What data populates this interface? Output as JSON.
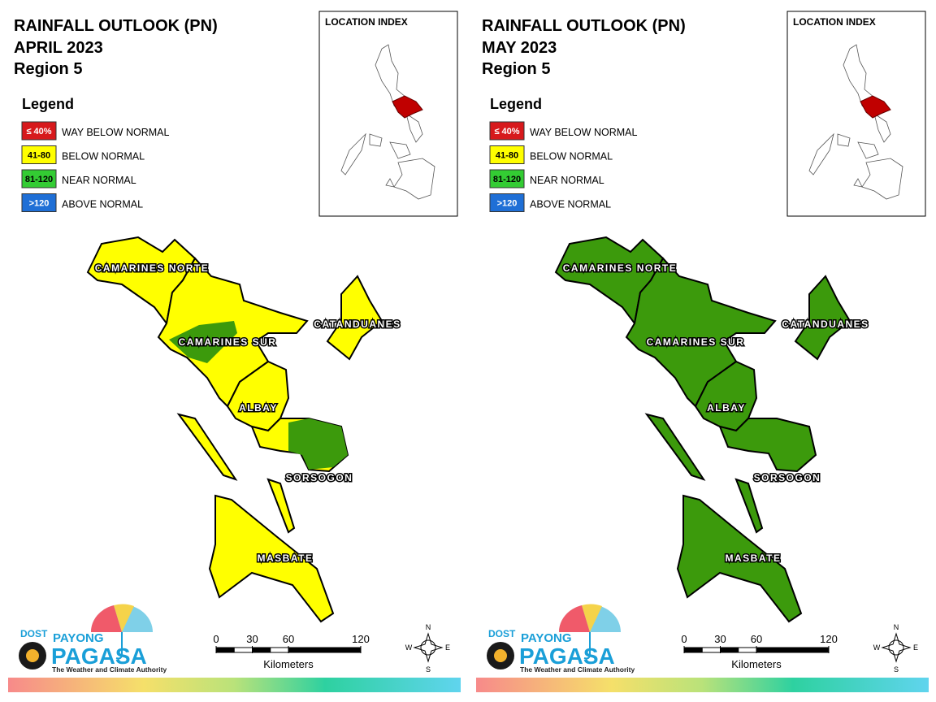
{
  "panels": [
    {
      "title": "RAINFALL OUTLOOK (PN)",
      "month": "APRIL 2023",
      "region": "Region 5",
      "legend_title": "Legend",
      "legend": [
        {
          "code": "≤ 40%",
          "label": "WAY BELOW NORMAL",
          "color": "#d7191c"
        },
        {
          "code": "41-80",
          "label": "BELOW NORMAL",
          "color": "#ffff00"
        },
        {
          "code": "81-120",
          "label": "NEAR NORMAL",
          "color": "#33cc33"
        },
        {
          "code": ">120",
          "label": "ABOVE NORMAL",
          "color": "#1f6fd6"
        }
      ],
      "location_index": "LOCATION INDEX",
      "provinces": [
        {
          "name": "CAMARINES NORTE",
          "fill": "#ffff00"
        },
        {
          "name": "CAMARINES SUR",
          "fill": "#ffff00",
          "patch_fill": "#3c9a0c"
        },
        {
          "name": "CATANDUANES",
          "fill": "#ffff00"
        },
        {
          "name": "ALBAY",
          "fill": "#ffff00"
        },
        {
          "name": "SORSOGON",
          "fill": "#ffff00",
          "patch_fill": "#3c9a0c"
        },
        {
          "name": "MASBATE",
          "fill": "#ffff00"
        }
      ],
      "scale": {
        "ticks": [
          0,
          30,
          60,
          120
        ],
        "unit": "Kilometers"
      },
      "compass": {
        "n": "N",
        "e": "E",
        "s": "S",
        "w": "W"
      },
      "logo": {
        "dost": "DOST",
        "payong": "PAYONG",
        "pagasa": "PAGASA",
        "tagline": "The Weather and Climate Authority"
      }
    },
    {
      "title": "RAINFALL OUTLOOK (PN)",
      "month": "MAY 2023",
      "region": "Region 5",
      "legend_title": "Legend",
      "legend": [
        {
          "code": "≤ 40%",
          "label": "WAY BELOW NORMAL",
          "color": "#d7191c"
        },
        {
          "code": "41-80",
          "label": "BELOW NORMAL",
          "color": "#ffff00"
        },
        {
          "code": "81-120",
          "label": "NEAR NORMAL",
          "color": "#33cc33"
        },
        {
          "code": ">120",
          "label": "ABOVE NORMAL",
          "color": "#1f6fd6"
        }
      ],
      "location_index": "LOCATION INDEX",
      "provinces": [
        {
          "name": "CAMARINES NORTE",
          "fill": "#3c9a0c"
        },
        {
          "name": "CAMARINES SUR",
          "fill": "#3c9a0c"
        },
        {
          "name": "CATANDUANES",
          "fill": "#3c9a0c"
        },
        {
          "name": "ALBAY",
          "fill": "#3c9a0c"
        },
        {
          "name": "SORSOGON",
          "fill": "#3c9a0c"
        },
        {
          "name": "MASBATE",
          "fill": "#3c9a0c"
        }
      ],
      "scale": {
        "ticks": [
          0,
          30,
          60,
          120
        ],
        "unit": "Kilometers"
      },
      "compass": {
        "n": "N",
        "e": "E",
        "s": "S",
        "w": "W"
      },
      "logo": {
        "dost": "DOST",
        "payong": "PAYONG",
        "pagasa": "PAGASA",
        "tagline": "The Weather and Climate Authority"
      }
    }
  ]
}
